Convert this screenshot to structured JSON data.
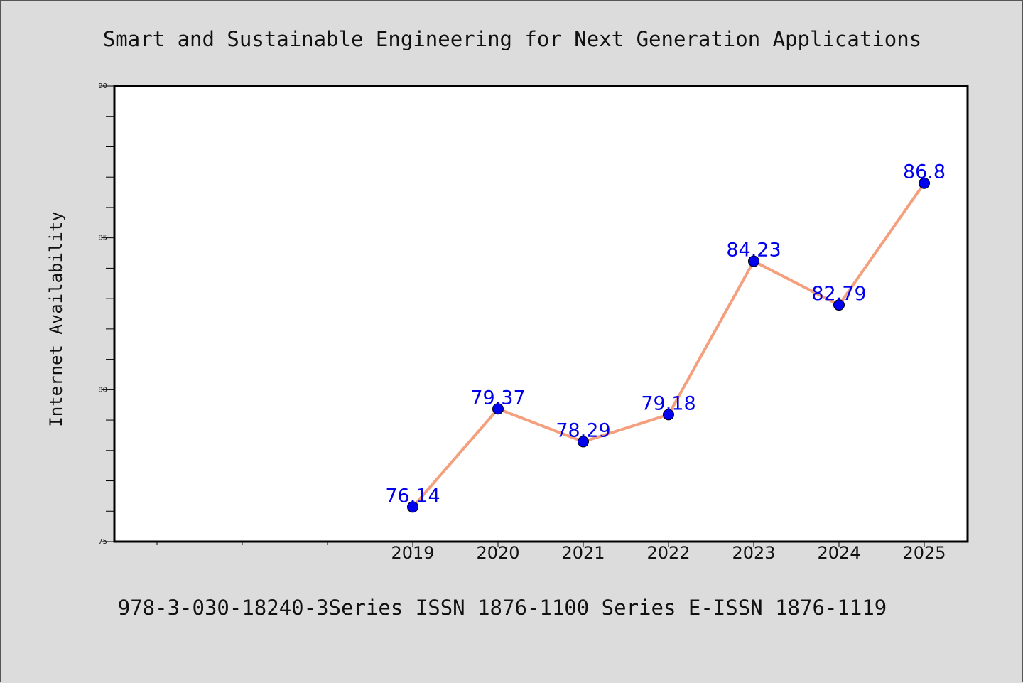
{
  "chart_data": {
    "type": "line",
    "title": "Smart and Sustainable Engineering for Next Generation Applications",
    "xlabel": "",
    "ylabel": "Internet Availability",
    "footer": "978-3-030-18240-3Series ISSN 1876-1100 Series E-ISSN 1876-1119",
    "categories": [
      "2019",
      "2020",
      "2021",
      "2022",
      "2023",
      "2024",
      "2025"
    ],
    "series": [
      {
        "values": [
          76.14,
          79.37,
          78.29,
          79.18,
          84.23,
          82.79,
          86.8
        ],
        "labels": [
          "76.14",
          "79.37",
          "78.29",
          "79.18",
          "84.23",
          "82.79",
          "86.8"
        ],
        "line_color": "#f4a07e",
        "marker_color": "#0000ee",
        "label_color": "#0000ee"
      }
    ],
    "ylim": [
      75,
      90
    ],
    "yticks": [
      "75",
      "80",
      "85",
      "90"
    ],
    "grid": false,
    "legend": "none",
    "background": "#dcdcdc",
    "plot_background": "#ffffff"
  }
}
